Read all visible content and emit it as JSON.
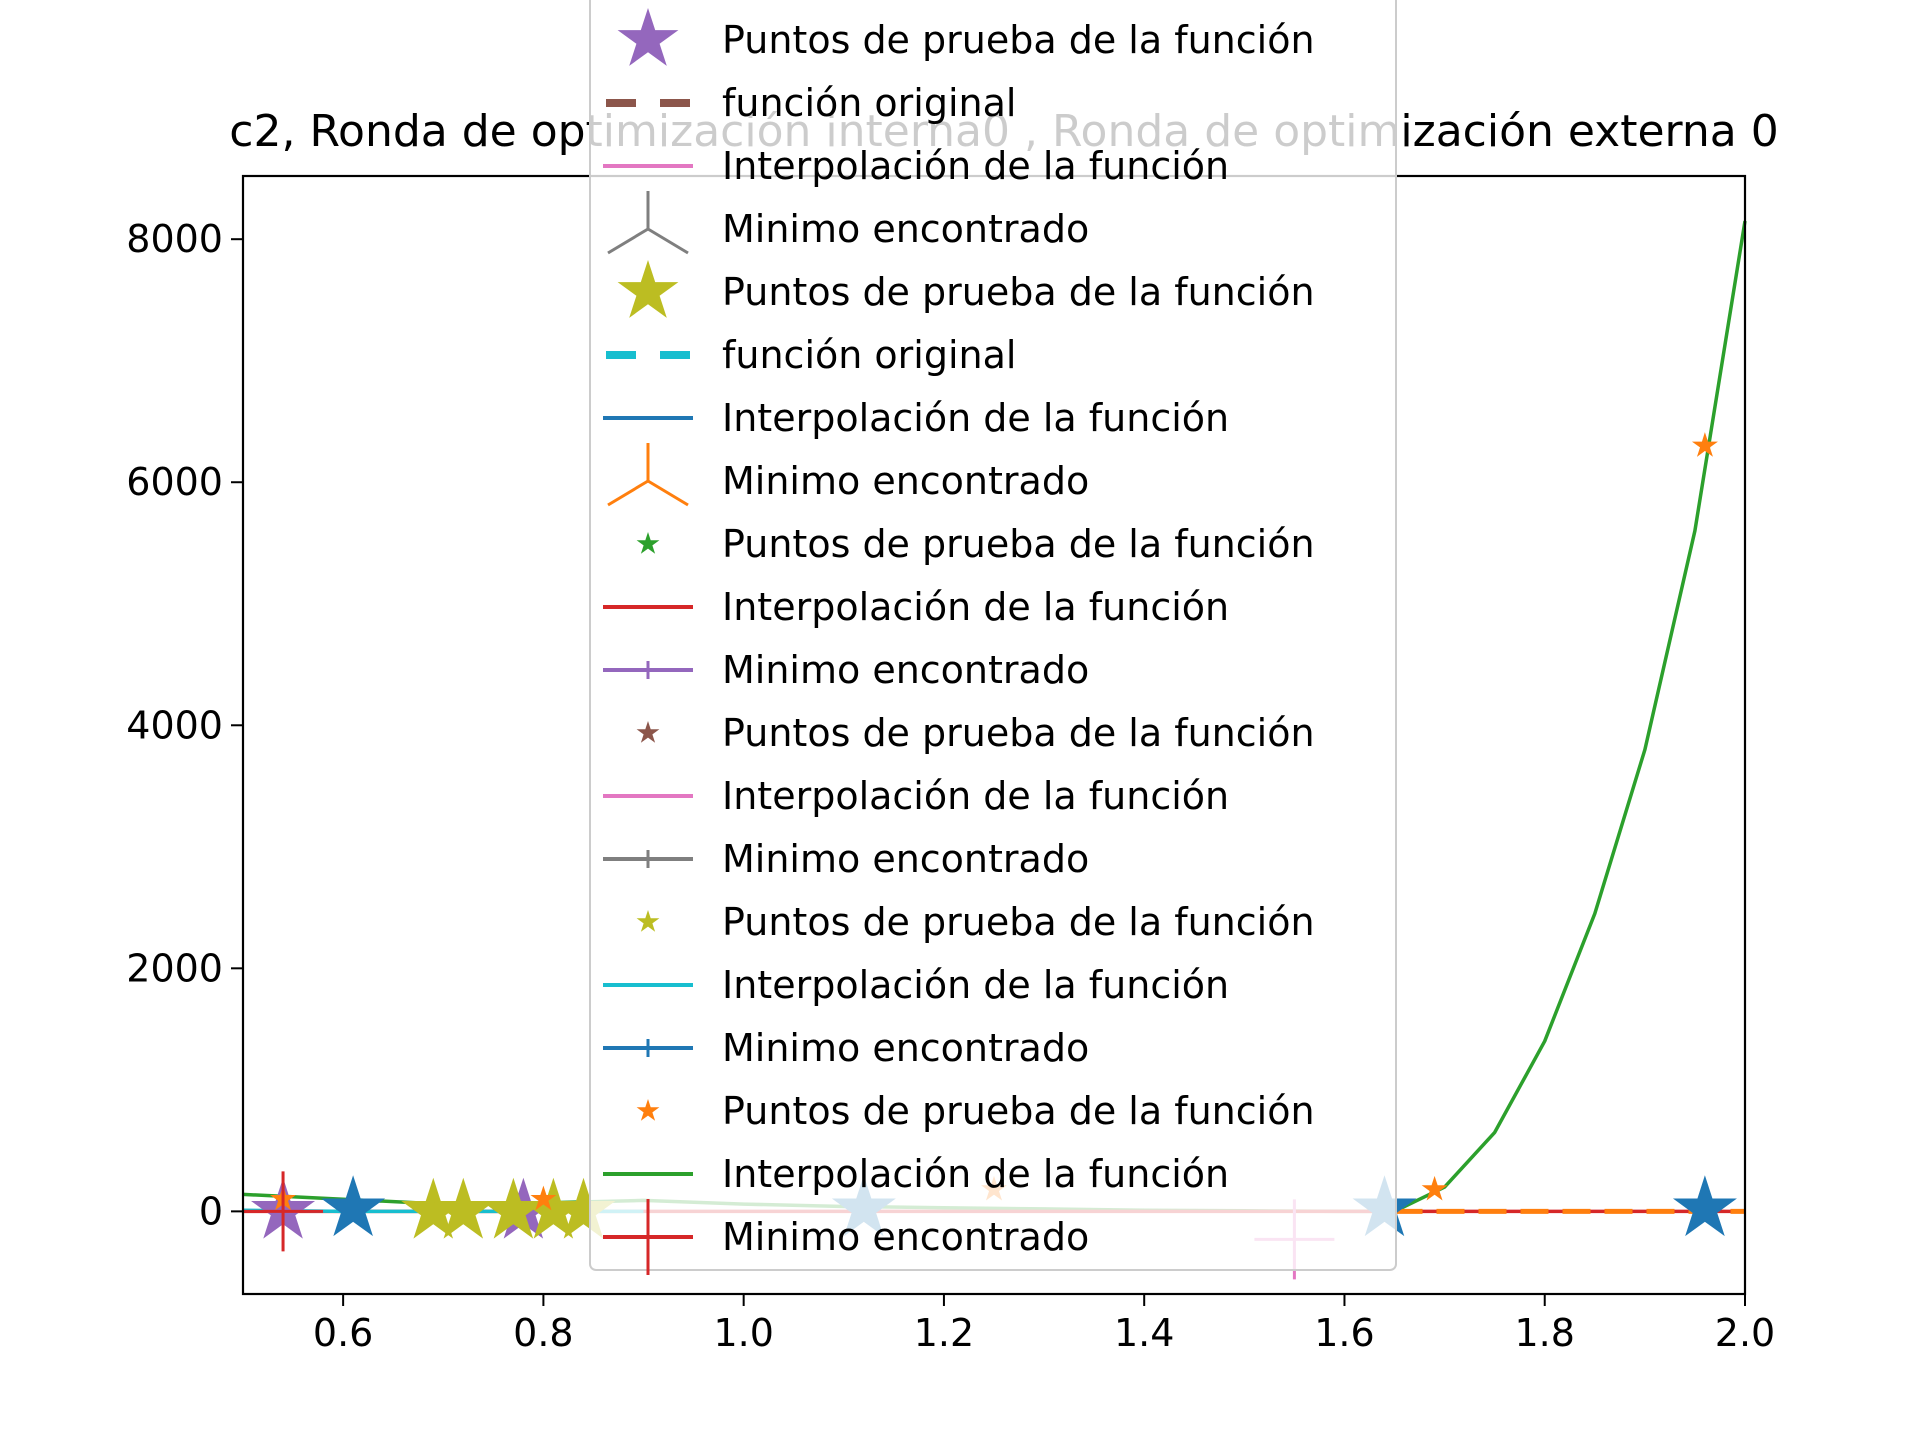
{
  "chart_data": {
    "type": "line",
    "title": "c2, Ronda de optimización interna0 , Ronda de optimización externa 0",
    "xlabel": "",
    "ylabel": "",
    "xlim": [
      0.5,
      2.0
    ],
    "ylim": [
      -680,
      8520
    ],
    "x_ticks": [
      "0.6",
      "0.8",
      "1.0",
      "1.2",
      "1.4",
      "1.6",
      "1.8",
      "2.0"
    ],
    "x_tick_values": [
      0.6,
      0.8,
      1.0,
      1.2,
      1.4,
      1.6,
      1.8,
      2.0
    ],
    "y_ticks": [
      "0",
      "2000",
      "4000",
      "6000",
      "8000"
    ],
    "y_tick_values": [
      0,
      2000,
      4000,
      6000,
      8000
    ],
    "grid": false,
    "legend_position": "upper-center",
    "legend_entries": [
      {
        "label": "Puntos de prueba de la función",
        "color": "#9467bd",
        "marker": "big-star"
      },
      {
        "label": "función original",
        "color": "#8c564b",
        "marker": "dash"
      },
      {
        "label": "Interpolación de la función",
        "color": "#e377c2",
        "marker": "line"
      },
      {
        "label": "Minimo encontrado",
        "color": "#7f7f7f",
        "marker": "tri"
      },
      {
        "label": "Puntos de prueba de la función",
        "color": "#bcbd22",
        "marker": "big-star"
      },
      {
        "label": "función original",
        "color": "#17becf",
        "marker": "dash"
      },
      {
        "label": "Interpolación de la función",
        "color": "#1f77b4",
        "marker": "line"
      },
      {
        "label": "Minimo encontrado",
        "color": "#ff7f0e",
        "marker": "tri"
      },
      {
        "label": "Puntos de prueba de la función",
        "color": "#2ca02c",
        "marker": "small-star"
      },
      {
        "label": "Interpolación de la función",
        "color": "#d62728",
        "marker": "line"
      },
      {
        "label": "Minimo encontrado",
        "color": "#9467bd",
        "marker": "line-plus"
      },
      {
        "label": "Puntos de prueba de la función",
        "color": "#8c564b",
        "marker": "small-star"
      },
      {
        "label": "Interpolación de la función",
        "color": "#e377c2",
        "marker": "line"
      },
      {
        "label": "Minimo encontrado",
        "color": "#7f7f7f",
        "marker": "line-plus"
      },
      {
        "label": "Puntos de prueba de la función",
        "color": "#bcbd22",
        "marker": "small-star"
      },
      {
        "label": "Interpolación de la función",
        "color": "#17becf",
        "marker": "line"
      },
      {
        "label": "Minimo encontrado",
        "color": "#1f77b4",
        "marker": "line-plus"
      },
      {
        "label": "Puntos de prueba de la función",
        "color": "#ff7f0e",
        "marker": "small-star"
      },
      {
        "label": "Interpolación de la función",
        "color": "#2ca02c",
        "marker": "line"
      },
      {
        "label": "Minimo encontrado",
        "color": "#d62728",
        "marker": "big-plus"
      }
    ],
    "series": [
      {
        "kind": "line",
        "color": "#2ca02c",
        "x": [
          0.5,
          0.6,
          0.7,
          0.8,
          0.9,
          1.0,
          1.1,
          1.2,
          1.3,
          1.4,
          1.5,
          1.6,
          1.65,
          1.7,
          1.75,
          1.8,
          1.85,
          1.9,
          1.95,
          2.0
        ],
        "y": [
          140,
          100,
          60,
          70,
          90,
          60,
          40,
          30,
          20,
          10,
          5,
          0,
          0,
          200,
          650,
          1400,
          2450,
          3800,
          5600,
          8150
        ]
      },
      {
        "kind": "line",
        "color": "#d62728",
        "x": [
          0.5,
          2.0
        ],
        "y": [
          0,
          0
        ]
      },
      {
        "kind": "dashed",
        "color": "#ff7f0e",
        "x": [
          1.65,
          2.0
        ],
        "y": [
          0,
          0
        ]
      },
      {
        "kind": "line",
        "color": "#17becf",
        "x": [
          0.5,
          0.6,
          0.7,
          0.8,
          0.9
        ],
        "y": [
          10,
          0,
          0,
          0,
          0
        ]
      },
      {
        "kind": "stars",
        "color": "#1f77b4",
        "size": "big",
        "x": [
          0.61,
          1.12,
          1.64,
          1.96
        ],
        "y": [
          20,
          20,
          20,
          20
        ]
      },
      {
        "kind": "stars",
        "color": "#9467bd",
        "size": "big",
        "x": [
          0.54,
          0.78
        ],
        "y": [
          0,
          0
        ]
      },
      {
        "kind": "stars",
        "color": "#bcbd22",
        "size": "big",
        "x": [
          0.69,
          0.72,
          0.77,
          0.81,
          0.84
        ],
        "y": [
          0,
          0,
          0,
          0,
          0
        ]
      },
      {
        "kind": "stars",
        "color": "#ff7f0e",
        "size": "small",
        "x": [
          0.54,
          0.8,
          1.25,
          1.69,
          1.96
        ],
        "y": [
          100,
          100,
          180,
          180,
          6300
        ]
      },
      {
        "kind": "plus",
        "color": "#d62728",
        "x": [
          0.54
        ],
        "y": [
          0
        ]
      },
      {
        "kind": "plus",
        "color": "#e377c2",
        "x": [
          1.55
        ],
        "y": [
          -230
        ]
      }
    ]
  }
}
